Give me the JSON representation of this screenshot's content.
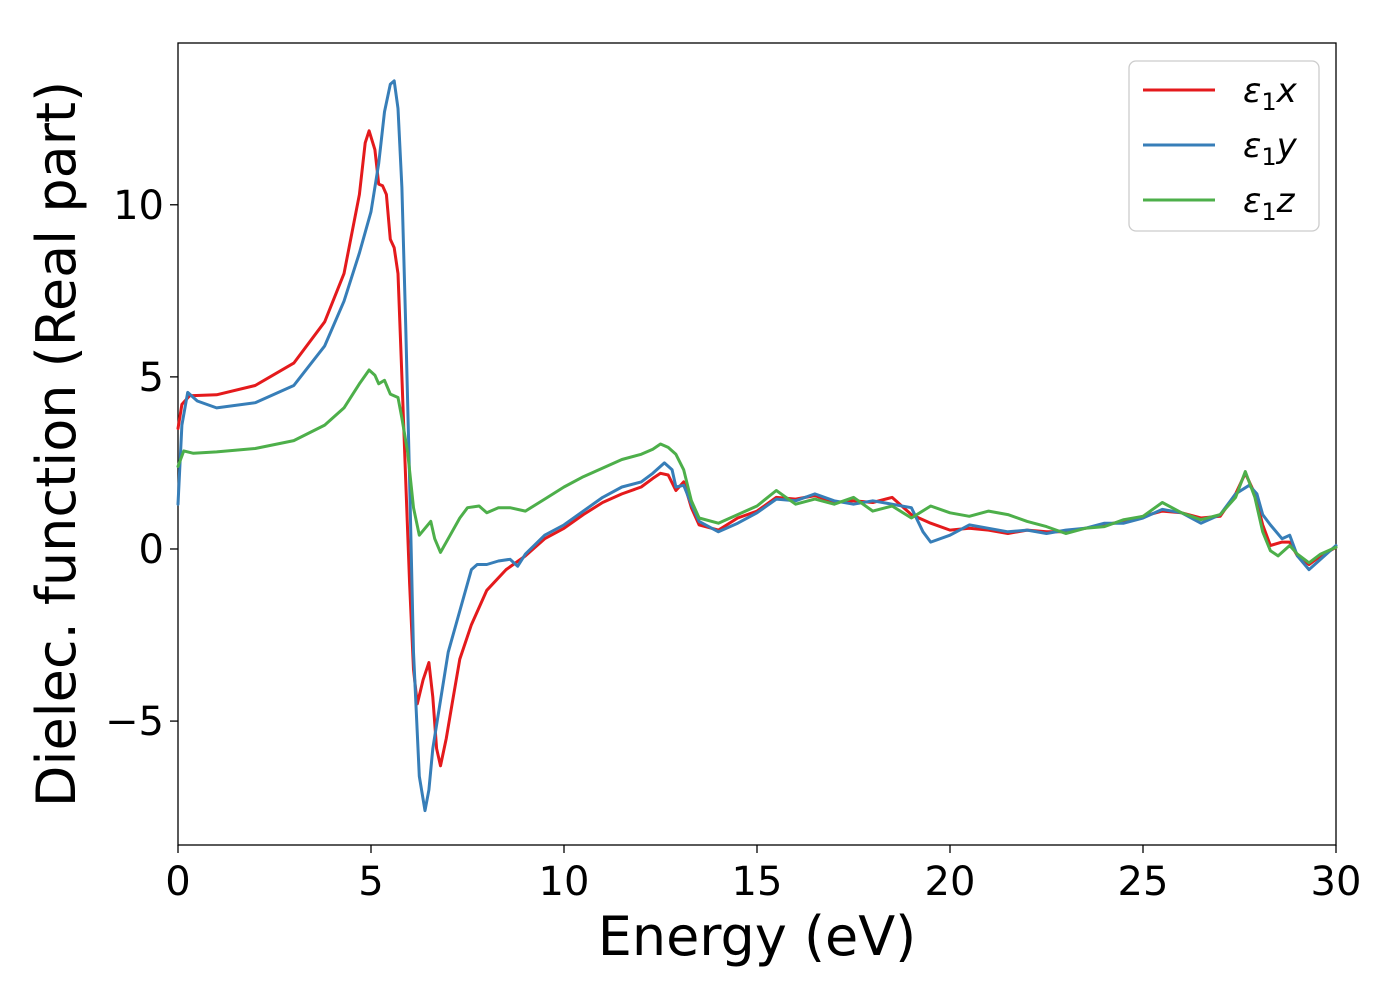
{
  "chart_data": {
    "type": "line",
    "title": "",
    "xlabel": "Energy (eV)",
    "ylabel": "Dielec. function (Real part)",
    "xlim": [
      0,
      30
    ],
    "ylim": [
      -8.6,
      14.7
    ],
    "x_ticks": [
      0,
      5,
      10,
      15,
      20,
      25,
      30
    ],
    "x_tick_labels": [
      "0",
      "5",
      "10",
      "15",
      "20",
      "25",
      "30"
    ],
    "y_ticks": [
      -5,
      0,
      5,
      10
    ],
    "y_tick_labels": [
      "−5",
      "0",
      "5",
      "10"
    ],
    "grid": false,
    "legend_position": "top-right",
    "series": [
      {
        "name": "ε1x",
        "legend_main": "ε",
        "legend_sub": "1",
        "legend_suffix": "x",
        "color": "#e41a1c",
        "points": [
          [
            0,
            3.5
          ],
          [
            0.1,
            4.2
          ],
          [
            0.3,
            4.45
          ],
          [
            1,
            4.48
          ],
          [
            2,
            4.75
          ],
          [
            3,
            5.4
          ],
          [
            3.8,
            6.6
          ],
          [
            4.3,
            8.0
          ],
          [
            4.7,
            10.3
          ],
          [
            4.85,
            11.8
          ],
          [
            4.95,
            12.15
          ],
          [
            5.1,
            11.6
          ],
          [
            5.2,
            10.6
          ],
          [
            5.3,
            10.55
          ],
          [
            5.4,
            10.3
          ],
          [
            5.5,
            9.0
          ],
          [
            5.6,
            8.75
          ],
          [
            5.7,
            8.0
          ],
          [
            5.8,
            5.0
          ],
          [
            5.9,
            2.0
          ],
          [
            6.0,
            -1.0
          ],
          [
            6.1,
            -3.5
          ],
          [
            6.2,
            -4.5
          ],
          [
            6.35,
            -3.8
          ],
          [
            6.5,
            -3.3
          ],
          [
            6.6,
            -4.3
          ],
          [
            6.7,
            -5.8
          ],
          [
            6.8,
            -6.3
          ],
          [
            6.95,
            -5.5
          ],
          [
            7.1,
            -4.5
          ],
          [
            7.3,
            -3.2
          ],
          [
            7.6,
            -2.2
          ],
          [
            8.0,
            -1.2
          ],
          [
            8.5,
            -0.6
          ],
          [
            9.0,
            -0.2
          ],
          [
            9.5,
            0.3
          ],
          [
            10,
            0.6
          ],
          [
            10.5,
            1.0
          ],
          [
            11,
            1.35
          ],
          [
            11.5,
            1.6
          ],
          [
            12,
            1.8
          ],
          [
            12.3,
            2.05
          ],
          [
            12.5,
            2.2
          ],
          [
            12.7,
            2.15
          ],
          [
            12.9,
            1.7
          ],
          [
            13.1,
            1.95
          ],
          [
            13.3,
            1.2
          ],
          [
            13.5,
            0.7
          ],
          [
            14,
            0.55
          ],
          [
            14.5,
            0.9
          ],
          [
            15,
            1.1
          ],
          [
            15.5,
            1.5
          ],
          [
            16,
            1.45
          ],
          [
            16.5,
            1.55
          ],
          [
            17,
            1.35
          ],
          [
            17.5,
            1.4
          ],
          [
            18,
            1.35
          ],
          [
            18.5,
            1.5
          ],
          [
            19,
            1.0
          ],
          [
            19.5,
            0.75
          ],
          [
            20,
            0.55
          ],
          [
            20.5,
            0.6
          ],
          [
            21,
            0.55
          ],
          [
            21.5,
            0.45
          ],
          [
            22,
            0.55
          ],
          [
            22.5,
            0.5
          ],
          [
            23,
            0.5
          ],
          [
            23.5,
            0.6
          ],
          [
            24,
            0.7
          ],
          [
            24.5,
            0.8
          ],
          [
            25,
            0.95
          ],
          [
            25.5,
            1.1
          ],
          [
            26,
            1.05
          ],
          [
            26.5,
            0.9
          ],
          [
            27,
            0.95
          ],
          [
            27.4,
            1.6
          ],
          [
            27.65,
            2.2
          ],
          [
            27.9,
            1.6
          ],
          [
            28.1,
            0.7
          ],
          [
            28.3,
            0.1
          ],
          [
            28.6,
            0.2
          ],
          [
            28.8,
            0.2
          ],
          [
            29,
            -0.2
          ],
          [
            29.3,
            -0.45
          ],
          [
            29.6,
            -0.2
          ],
          [
            30,
            0.05
          ]
        ]
      },
      {
        "name": "ε1y",
        "legend_main": "ε",
        "legend_sub": "1",
        "legend_suffix": "y",
        "color": "#377eb8",
        "points": [
          [
            0,
            1.3
          ],
          [
            0.1,
            3.6
          ],
          [
            0.25,
            4.55
          ],
          [
            0.5,
            4.3
          ],
          [
            1,
            4.1
          ],
          [
            2,
            4.25
          ],
          [
            3,
            4.75
          ],
          [
            3.8,
            5.9
          ],
          [
            4.3,
            7.2
          ],
          [
            4.7,
            8.6
          ],
          [
            5.0,
            9.8
          ],
          [
            5.2,
            11.2
          ],
          [
            5.35,
            12.7
          ],
          [
            5.5,
            13.5
          ],
          [
            5.6,
            13.6
          ],
          [
            5.7,
            12.8
          ],
          [
            5.8,
            10.5
          ],
          [
            5.9,
            6.5
          ],
          [
            6.0,
            2.0
          ],
          [
            6.1,
            -3.0
          ],
          [
            6.25,
            -6.6
          ],
          [
            6.4,
            -7.6
          ],
          [
            6.5,
            -7.0
          ],
          [
            6.6,
            -5.8
          ],
          [
            6.8,
            -4.4
          ],
          [
            7.0,
            -3.0
          ],
          [
            7.3,
            -1.8
          ],
          [
            7.6,
            -0.6
          ],
          [
            7.75,
            -0.45
          ],
          [
            8.0,
            -0.45
          ],
          [
            8.3,
            -0.35
          ],
          [
            8.6,
            -0.3
          ],
          [
            8.8,
            -0.5
          ],
          [
            9.0,
            -0.15
          ],
          [
            9.5,
            0.4
          ],
          [
            10,
            0.7
          ],
          [
            10.5,
            1.1
          ],
          [
            11,
            1.5
          ],
          [
            11.5,
            1.8
          ],
          [
            12,
            1.95
          ],
          [
            12.3,
            2.2
          ],
          [
            12.6,
            2.5
          ],
          [
            12.8,
            2.3
          ],
          [
            12.9,
            1.8
          ],
          [
            13.1,
            1.85
          ],
          [
            13.3,
            1.3
          ],
          [
            13.5,
            0.8
          ],
          [
            14,
            0.5
          ],
          [
            14.5,
            0.75
          ],
          [
            15,
            1.05
          ],
          [
            15.5,
            1.45
          ],
          [
            16,
            1.4
          ],
          [
            16.5,
            1.6
          ],
          [
            17,
            1.4
          ],
          [
            17.5,
            1.3
          ],
          [
            18,
            1.4
          ],
          [
            18.5,
            1.3
          ],
          [
            19,
            1.2
          ],
          [
            19.3,
            0.5
          ],
          [
            19.5,
            0.2
          ],
          [
            20,
            0.4
          ],
          [
            20.5,
            0.7
          ],
          [
            21,
            0.6
          ],
          [
            21.5,
            0.5
          ],
          [
            22,
            0.55
          ],
          [
            22.5,
            0.45
          ],
          [
            23,
            0.55
          ],
          [
            23.5,
            0.6
          ],
          [
            24,
            0.75
          ],
          [
            24.5,
            0.75
          ],
          [
            25,
            0.9
          ],
          [
            25.5,
            1.15
          ],
          [
            26,
            1.05
          ],
          [
            26.5,
            0.75
          ],
          [
            27,
            1.0
          ],
          [
            27.4,
            1.6
          ],
          [
            27.75,
            1.85
          ],
          [
            27.95,
            1.6
          ],
          [
            28.1,
            1.0
          ],
          [
            28.3,
            0.7
          ],
          [
            28.6,
            0.3
          ],
          [
            28.8,
            0.4
          ],
          [
            29,
            -0.2
          ],
          [
            29.3,
            -0.6
          ],
          [
            29.6,
            -0.3
          ],
          [
            30,
            0.1
          ]
        ]
      },
      {
        "name": "ε1z",
        "legend_main": "ε",
        "legend_sub": "1",
        "legend_suffix": "z",
        "color": "#4daf4a",
        "points": [
          [
            0,
            2.4
          ],
          [
            0.15,
            2.85
          ],
          [
            0.4,
            2.78
          ],
          [
            1,
            2.82
          ],
          [
            2,
            2.92
          ],
          [
            3,
            3.15
          ],
          [
            3.8,
            3.6
          ],
          [
            4.3,
            4.1
          ],
          [
            4.7,
            4.8
          ],
          [
            4.95,
            5.2
          ],
          [
            5.1,
            5.05
          ],
          [
            5.2,
            4.8
          ],
          [
            5.35,
            4.9
          ],
          [
            5.5,
            4.5
          ],
          [
            5.7,
            4.4
          ],
          [
            5.8,
            3.8
          ],
          [
            5.95,
            2.8
          ],
          [
            6.1,
            1.2
          ],
          [
            6.25,
            0.4
          ],
          [
            6.4,
            0.6
          ],
          [
            6.55,
            0.8
          ],
          [
            6.65,
            0.3
          ],
          [
            6.8,
            -0.1
          ],
          [
            7.0,
            0.3
          ],
          [
            7.3,
            0.9
          ],
          [
            7.5,
            1.2
          ],
          [
            7.8,
            1.25
          ],
          [
            8.0,
            1.05
          ],
          [
            8.3,
            1.2
          ],
          [
            8.6,
            1.2
          ],
          [
            9,
            1.1
          ],
          [
            9.5,
            1.45
          ],
          [
            10,
            1.8
          ],
          [
            10.5,
            2.1
          ],
          [
            11,
            2.35
          ],
          [
            11.5,
            2.6
          ],
          [
            12,
            2.75
          ],
          [
            12.3,
            2.9
          ],
          [
            12.5,
            3.05
          ],
          [
            12.7,
            2.95
          ],
          [
            12.9,
            2.75
          ],
          [
            13.1,
            2.3
          ],
          [
            13.3,
            1.4
          ],
          [
            13.5,
            0.9
          ],
          [
            14,
            0.75
          ],
          [
            14.5,
            1.0
          ],
          [
            15,
            1.25
          ],
          [
            15.5,
            1.7
          ],
          [
            16,
            1.3
          ],
          [
            16.5,
            1.45
          ],
          [
            17,
            1.3
          ],
          [
            17.5,
            1.5
          ],
          [
            18,
            1.1
          ],
          [
            18.5,
            1.25
          ],
          [
            19,
            0.9
          ],
          [
            19.5,
            1.25
          ],
          [
            20,
            1.05
          ],
          [
            20.5,
            0.95
          ],
          [
            21,
            1.1
          ],
          [
            21.5,
            1.0
          ],
          [
            22,
            0.8
          ],
          [
            22.5,
            0.65
          ],
          [
            23,
            0.45
          ],
          [
            23.5,
            0.6
          ],
          [
            24,
            0.65
          ],
          [
            24.5,
            0.85
          ],
          [
            25,
            0.95
          ],
          [
            25.5,
            1.35
          ],
          [
            26,
            1.05
          ],
          [
            26.5,
            0.85
          ],
          [
            27,
            1.0
          ],
          [
            27.4,
            1.5
          ],
          [
            27.65,
            2.25
          ],
          [
            27.9,
            1.5
          ],
          [
            28.1,
            0.5
          ],
          [
            28.3,
            -0.05
          ],
          [
            28.5,
            -0.2
          ],
          [
            28.8,
            0.1
          ],
          [
            29,
            -0.15
          ],
          [
            29.3,
            -0.4
          ],
          [
            29.6,
            -0.15
          ],
          [
            30,
            0.05
          ]
        ]
      }
    ]
  }
}
